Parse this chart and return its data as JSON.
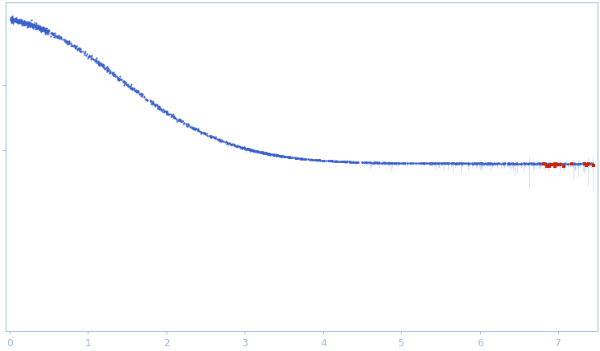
{
  "title": "",
  "xlabel": "",
  "ylabel": "",
  "xlim": [
    -0.05,
    7.5
  ],
  "dot_color_main": "#3a5fcd",
  "dot_color_outlier": "#cc2200",
  "error_color": "#b8d0ea",
  "axis_color": "#a0b8d8",
  "tick_color": "#a0b8d8",
  "label_color": "#a0b8d8",
  "background_color": "#ffffff",
  "xticks": [
    0,
    1,
    2,
    3,
    4,
    5,
    6,
    7
  ],
  "n_points_low": 300,
  "n_points_mid": 600,
  "n_points_high": 900,
  "n_outliers": 18,
  "seed": 7,
  "x_max": 7.45
}
